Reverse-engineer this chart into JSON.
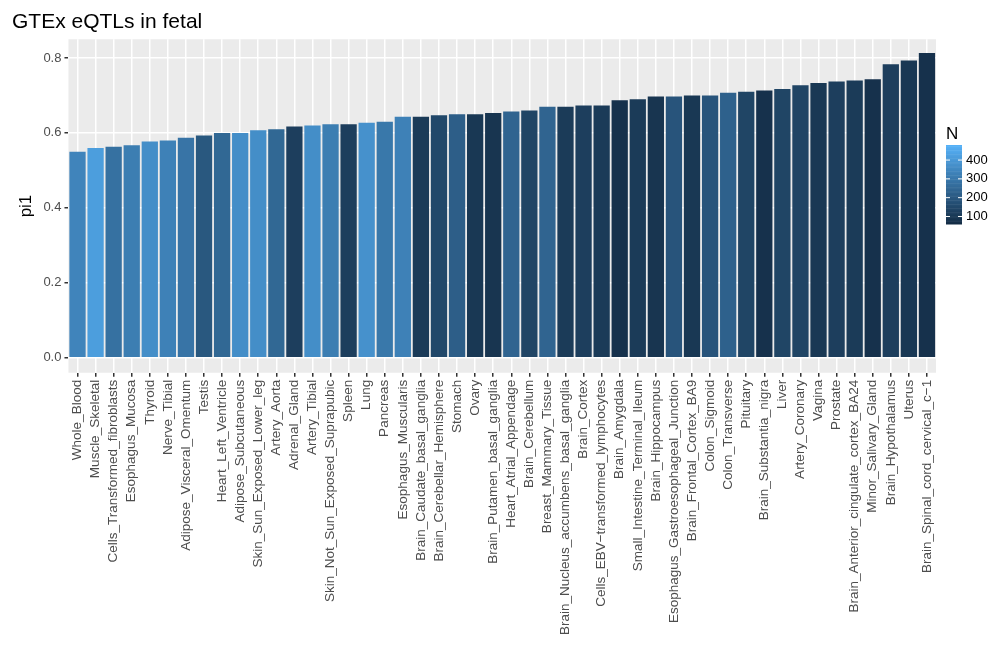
{
  "chart_data": {
    "type": "bar",
    "title": "GTEx eQTLs in fetal",
    "ylabel": "pi1",
    "clabel": "N",
    "categories": [
      "Whole_Blood",
      "Muscle_Skeletal",
      "Cells_Transformed_fibroblasts",
      "Esophagus_Mucosa",
      "Thyroid",
      "Nerve_Tibial",
      "Adipose_Visceral_Omentum",
      "Testis",
      "Heart_Left_Ventricle",
      "Adipose_Subcutaneous",
      "Skin_Sun_Exposed_Lower_leg",
      "Artery_Aorta",
      "Adrenal_Gland",
      "Artery_Tibial",
      "Skin_Not_Sun_Exposed_Suprapubic",
      "Spleen",
      "Lung",
      "Pancreas",
      "Esophagus_Muscularis",
      "Brain_Caudate_basal_ganglia",
      "Brain_Cerebellar_Hemisphere",
      "Stomach",
      "Ovary",
      "Brain_Putamen_basal_ganglia",
      "Heart_Atrial_Appendage",
      "Brain_Cerebellum",
      "Breast_Mammary_Tissue",
      "Brain_Nucleus_accumbens_basal_ganglia",
      "Brain_Cortex",
      "Cells_EBV−transformed_lymphocytes",
      "Brain_Amygdala",
      "Small_Intestine_Terminal_Ileum",
      "Brain_Hippocampus",
      "Esophagus_Gastroesophageal_Junction",
      "Brain_Frontal_Cortex_BA9",
      "Colon_Sigmoid",
      "Colon_Transverse",
      "Pituitary",
      "Brain_Substantia_nigra",
      "Liver",
      "Artery_Coronary",
      "Vagina",
      "Prostate",
      "Brain_Anterior_cingulate_cortex_BA24",
      "Minor_Salivary_Gland",
      "Brain_Hypothalamus",
      "Uterus",
      "Brain_Spinal_cord_cervical_c−1"
    ],
    "values": [
      0.55,
      0.56,
      0.563,
      0.567,
      0.577,
      0.58,
      0.587,
      0.593,
      0.6,
      0.6,
      0.607,
      0.61,
      0.617,
      0.62,
      0.623,
      0.623,
      0.627,
      0.63,
      0.643,
      0.643,
      0.647,
      0.65,
      0.65,
      0.653,
      0.657,
      0.66,
      0.67,
      0.67,
      0.673,
      0.673,
      0.687,
      0.69,
      0.697,
      0.697,
      0.7,
      0.7,
      0.707,
      0.71,
      0.713,
      0.717,
      0.727,
      0.733,
      0.737,
      0.74,
      0.743,
      0.783,
      0.793,
      0.813
    ],
    "cvalues": [
      340,
      420,
      280,
      320,
      370,
      330,
      290,
      200,
      250,
      370,
      370,
      250,
      120,
      370,
      320,
      120,
      380,
      300,
      330,
      110,
      150,
      220,
      100,
      90,
      240,
      140,
      240,
      110,
      120,
      110,
      80,
      110,
      90,
      190,
      100,
      190,
      230,
      140,
      80,
      140,
      140,
      100,
      120,
      110,
      80,
      120,
      100,
      80
    ],
    "clim": [
      60,
      480
    ],
    "cticks": [
      100,
      200,
      300,
      400
    ],
    "ylim": [
      -0.04,
      0.85
    ],
    "yticks": [
      {
        "value": 0,
        "label": "0.0"
      },
      {
        "value": 0.2,
        "label": "0.2"
      },
      {
        "value": 0.4,
        "label": "0.4"
      },
      {
        "value": 0.6,
        "label": "0.6"
      },
      {
        "value": 0.8,
        "label": "0.8"
      }
    ],
    "grid": true
  }
}
